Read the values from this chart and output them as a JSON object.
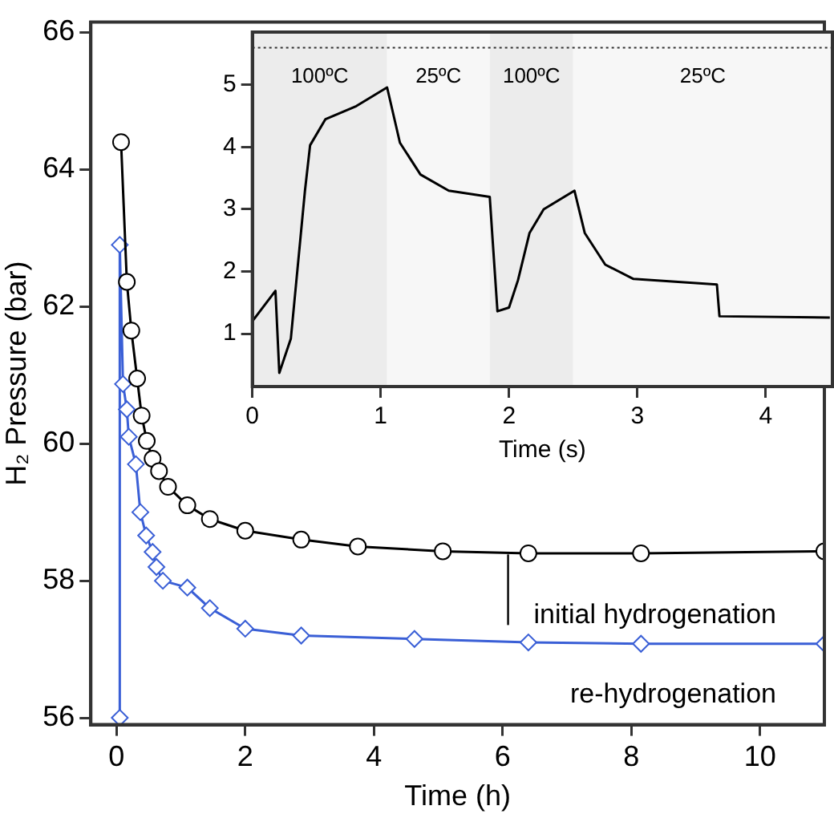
{
  "chart_data": [
    {
      "type": "line",
      "xlabel": "Time (h)",
      "ylabel": "H₂ Pressure (bar)",
      "xlim": [
        -0.4,
        11
      ],
      "xticks": [
        0,
        2,
        4,
        6,
        8,
        10
      ],
      "ylim": [
        55.9,
        66.15
      ],
      "yticks": [
        56,
        58,
        60,
        62,
        64,
        66
      ],
      "grid": false,
      "legend": false,
      "series": [
        {
          "name": "initial hydrogenation",
          "color": "#000000",
          "marker": "circle",
          "x": [
            0.07,
            0.16,
            0.23,
            0.32,
            0.39,
            0.47,
            0.56,
            0.66,
            0.8,
            1.1,
            1.45,
            2.0,
            2.87,
            3.75,
            5.07,
            6.4,
            8.15,
            11.0
          ],
          "values": [
            64.4,
            62.36,
            61.65,
            60.95,
            60.41,
            60.04,
            59.78,
            59.6,
            59.37,
            59.1,
            58.9,
            58.73,
            58.6,
            58.5,
            58.43,
            58.4,
            58.4,
            58.43
          ]
        },
        {
          "name": "re-hydrogenation",
          "color": "#3a5fd6",
          "marker": "diamond",
          "x": [
            0.05,
            0.05,
            0.1,
            0.16,
            0.19,
            0.3,
            0.37,
            0.46,
            0.56,
            0.62,
            0.72,
            1.1,
            1.45,
            2.0,
            2.87,
            4.63,
            6.4,
            8.15,
            11.0
          ],
          "values": [
            56.0,
            62.9,
            60.87,
            60.5,
            60.1,
            59.7,
            59.0,
            58.66,
            58.42,
            58.2,
            58.0,
            57.9,
            57.6,
            57.3,
            57.2,
            57.15,
            57.1,
            57.08,
            57.08
          ]
        }
      ]
    },
    {
      "type": "line",
      "xlabel": "Time (s)",
      "xlim": [
        0,
        4.52
      ],
      "xticks": [
        0,
        1,
        2,
        3,
        4
      ],
      "ylim": [
        0.15,
        5.85
      ],
      "yticks": [
        1,
        2,
        3,
        4,
        5
      ],
      "grid": false,
      "legend": false,
      "ref_lines": [
        {
          "axis": "y",
          "value": 5.6,
          "line_style": "dotted"
        }
      ],
      "bands": [
        {
          "axis": "x",
          "from": 0,
          "to": 1.05,
          "label": "100ºC",
          "color": "#ececec"
        },
        {
          "axis": "x",
          "from": 1.05,
          "to": 1.85,
          "label": "25ºC",
          "color": "#f7f7f7"
        },
        {
          "axis": "x",
          "from": 1.85,
          "to": 2.5,
          "label": "100ºC",
          "color": "#ececec"
        },
        {
          "axis": "x",
          "from": 2.5,
          "to": 4.52,
          "label": "25ºC",
          "color": "#f7f7f7"
        }
      ],
      "series": [
        {
          "color": "#000000",
          "marker": "none",
          "x": [
            0,
            0.18,
            0.21,
            0.3,
            0.41,
            0.45,
            0.57,
            0.81,
            1.05,
            1.15,
            1.31,
            1.53,
            1.85,
            1.87,
            1.91,
            2.0,
            2.07,
            2.16,
            2.27,
            2.51,
            2.59,
            2.75,
            2.97,
            3.62,
            3.64,
            4.5
          ],
          "values": [
            1.2,
            1.69,
            0.37,
            0.92,
            3.3,
            4.03,
            4.45,
            4.66,
            4.96,
            4.07,
            3.56,
            3.3,
            3.2,
            2.58,
            1.36,
            1.42,
            1.86,
            2.62,
            3.0,
            3.3,
            2.62,
            2.11,
            1.88,
            1.79,
            1.28,
            1.26
          ]
        }
      ]
    }
  ]
}
